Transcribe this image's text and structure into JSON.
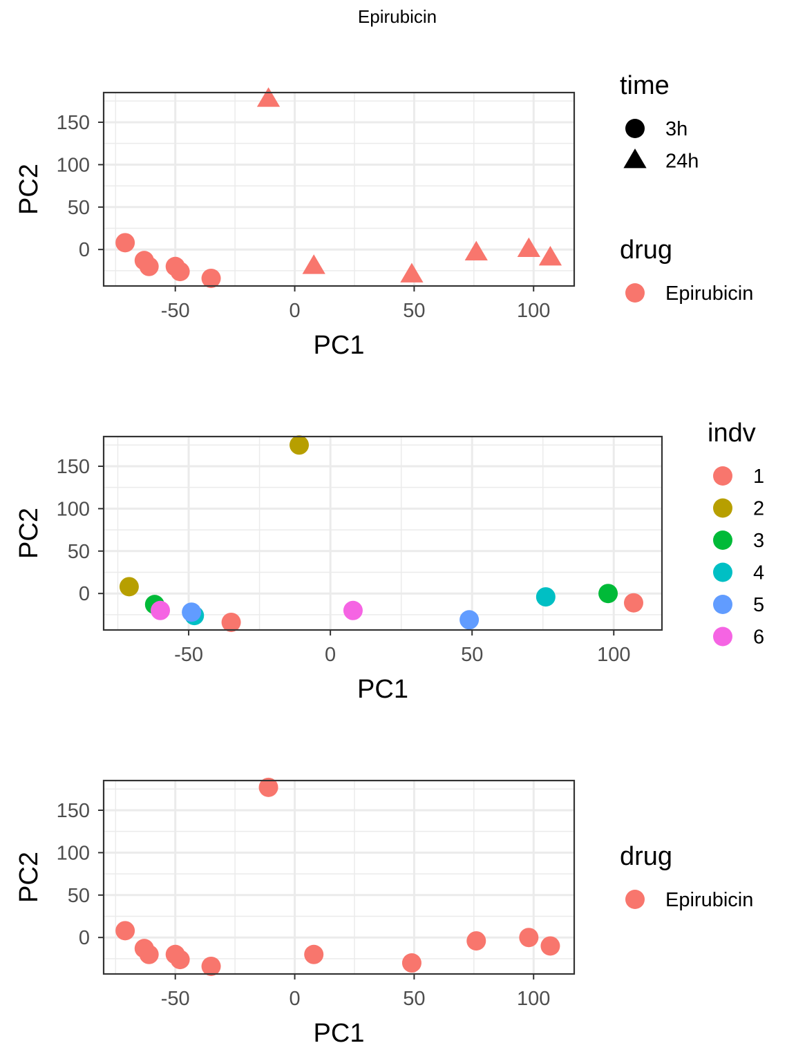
{
  "figure": {
    "title": "Epirubicin"
  },
  "chart_data": [
    {
      "type": "scatter",
      "xlabel": "PC1",
      "ylabel": "PC2",
      "xlim": [
        -80,
        117
      ],
      "ylim": [
        -43,
        185
      ],
      "xticks": [
        -50,
        0,
        50,
        100
      ],
      "xtick_labels": [
        "-50",
        "0",
        "50",
        "100"
      ],
      "yticks": [
        0,
        50,
        100,
        150
      ],
      "ytick_labels": [
        "0",
        "50",
        "100",
        "150"
      ],
      "grid": true,
      "legends": [
        {
          "title": "time",
          "kind": "shape",
          "entries": [
            {
              "label": "3h",
              "shape": "circle",
              "color": "#000000"
            },
            {
              "label": "24h",
              "shape": "triangle",
              "color": "#000000"
            }
          ]
        },
        {
          "title": "drug",
          "kind": "color",
          "entries": [
            {
              "label": "Epirubicin",
              "shape": "circle",
              "color": "#F8766D"
            }
          ]
        }
      ],
      "points": [
        {
          "x": -71,
          "y": 8,
          "shape": "circle",
          "color": "#F8766D"
        },
        {
          "x": -63,
          "y": -13,
          "shape": "circle",
          "color": "#F8766D"
        },
        {
          "x": -61,
          "y": -20,
          "shape": "circle",
          "color": "#F8766D"
        },
        {
          "x": -50,
          "y": -20,
          "shape": "circle",
          "color": "#F8766D"
        },
        {
          "x": -48,
          "y": -26,
          "shape": "circle",
          "color": "#F8766D"
        },
        {
          "x": -35,
          "y": -34,
          "shape": "circle",
          "color": "#F8766D"
        },
        {
          "x": -11,
          "y": 177,
          "shape": "triangle",
          "color": "#F8766D"
        },
        {
          "x": 8,
          "y": -20,
          "shape": "triangle",
          "color": "#F8766D"
        },
        {
          "x": 49,
          "y": -30,
          "shape": "triangle",
          "color": "#F8766D"
        },
        {
          "x": 76,
          "y": -4,
          "shape": "triangle",
          "color": "#F8766D"
        },
        {
          "x": 98,
          "y": 0,
          "shape": "triangle",
          "color": "#F8766D"
        },
        {
          "x": 107,
          "y": -10,
          "shape": "triangle",
          "color": "#F8766D"
        }
      ]
    },
    {
      "type": "scatter",
      "xlabel": "PC1",
      "ylabel": "PC2",
      "xlim": [
        -80,
        117
      ],
      "ylim": [
        -43,
        185
      ],
      "xticks": [
        -50,
        0,
        50,
        100
      ],
      "xtick_labels": [
        "-50",
        "0",
        "50",
        "100"
      ],
      "yticks": [
        0,
        50,
        100,
        150
      ],
      "ytick_labels": [
        "0",
        "50",
        "100",
        "150"
      ],
      "grid": true,
      "legends": [
        {
          "title": "indv",
          "kind": "color",
          "entries": [
            {
              "label": "1",
              "shape": "circle",
              "color": "#F8766D"
            },
            {
              "label": "2",
              "shape": "circle",
              "color": "#B79F00"
            },
            {
              "label": "3",
              "shape": "circle",
              "color": "#00BA38"
            },
            {
              "label": "4",
              "shape": "circle",
              "color": "#00BFC4"
            },
            {
              "label": "5",
              "shape": "circle",
              "color": "#619CFF"
            },
            {
              "label": "6",
              "shape": "circle",
              "color": "#F564E3"
            }
          ]
        }
      ],
      "points": [
        {
          "x": -71,
          "y": 8,
          "shape": "circle",
          "color": "#B79F00"
        },
        {
          "x": -62,
          "y": -13,
          "shape": "circle",
          "color": "#00BA38"
        },
        {
          "x": -60,
          "y": -20,
          "shape": "circle",
          "color": "#F564E3"
        },
        {
          "x": -48,
          "y": -26,
          "shape": "circle",
          "color": "#00BFC4"
        },
        {
          "x": -49,
          "y": -22,
          "shape": "circle",
          "color": "#619CFF"
        },
        {
          "x": -35,
          "y": -34,
          "shape": "circle",
          "color": "#F8766D"
        },
        {
          "x": -11,
          "y": 175,
          "shape": "circle",
          "color": "#B79F00"
        },
        {
          "x": 8,
          "y": -20,
          "shape": "circle",
          "color": "#F564E3"
        },
        {
          "x": 49,
          "y": -31,
          "shape": "circle",
          "color": "#619CFF"
        },
        {
          "x": 76,
          "y": -4,
          "shape": "circle",
          "color": "#00BFC4"
        },
        {
          "x": 98,
          "y": 0,
          "shape": "circle",
          "color": "#00BA38"
        },
        {
          "x": 107,
          "y": -11,
          "shape": "circle",
          "color": "#F8766D"
        }
      ]
    },
    {
      "type": "scatter",
      "xlabel": "PC1",
      "ylabel": "PC2",
      "xlim": [
        -80,
        117
      ],
      "ylim": [
        -43,
        185
      ],
      "xticks": [
        -50,
        0,
        50,
        100
      ],
      "xtick_labels": [
        "-50",
        "0",
        "50",
        "100"
      ],
      "yticks": [
        0,
        50,
        100,
        150
      ],
      "ytick_labels": [
        "0",
        "50",
        "100",
        "150"
      ],
      "grid": true,
      "legends": [
        {
          "title": "drug",
          "kind": "color",
          "entries": [
            {
              "label": "Epirubicin",
              "shape": "circle",
              "color": "#F8766D"
            }
          ]
        }
      ],
      "points": [
        {
          "x": -71,
          "y": 8,
          "shape": "circle",
          "color": "#F8766D"
        },
        {
          "x": -63,
          "y": -13,
          "shape": "circle",
          "color": "#F8766D"
        },
        {
          "x": -61,
          "y": -20,
          "shape": "circle",
          "color": "#F8766D"
        },
        {
          "x": -50,
          "y": -20,
          "shape": "circle",
          "color": "#F8766D"
        },
        {
          "x": -48,
          "y": -26,
          "shape": "circle",
          "color": "#F8766D"
        },
        {
          "x": -35,
          "y": -34,
          "shape": "circle",
          "color": "#F8766D"
        },
        {
          "x": -11,
          "y": 177,
          "shape": "circle",
          "color": "#F8766D"
        },
        {
          "x": 8,
          "y": -20,
          "shape": "circle",
          "color": "#F8766D"
        },
        {
          "x": 49,
          "y": -30,
          "shape": "circle",
          "color": "#F8766D"
        },
        {
          "x": 76,
          "y": -4,
          "shape": "circle",
          "color": "#F8766D"
        },
        {
          "x": 98,
          "y": 0,
          "shape": "circle",
          "color": "#F8766D"
        },
        {
          "x": 107,
          "y": -10,
          "shape": "circle",
          "color": "#F8766D"
        }
      ]
    }
  ]
}
